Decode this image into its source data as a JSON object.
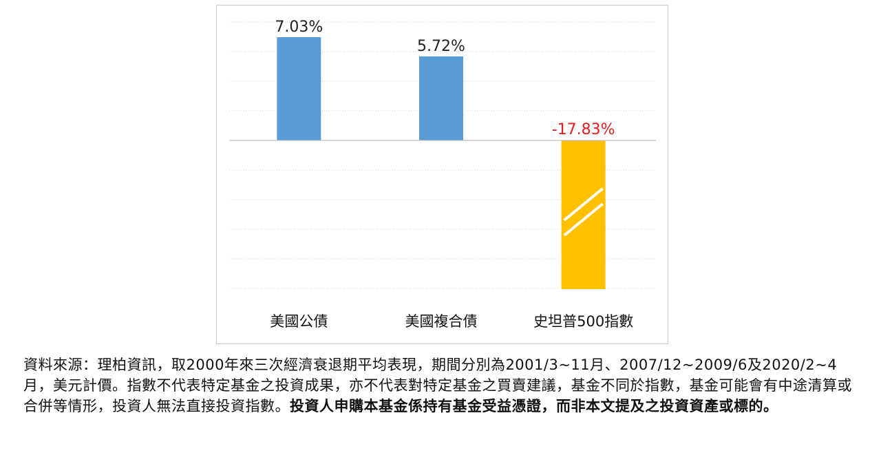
{
  "chart_data": {
    "type": "bar",
    "categories": [
      "美國公債",
      "美國複合債",
      "史坦普500指數"
    ],
    "values": [
      7.03,
      5.72,
      -17.83
    ],
    "value_labels": [
      "7.03%",
      "5.72%",
      "-17.83%"
    ],
    "colors": [
      "#5b9bd5",
      "#5b9bd5",
      "#ffc000"
    ],
    "label_colors": [
      "#222222",
      "#222222",
      "#e02020"
    ],
    "axis_break_on": "史坦普500指數",
    "grid": "dotted",
    "legend": "none"
  },
  "caption": {
    "normal": "資料來源：理柏資訊，取2000年來三次經濟衰退期平均表現，期間分別為2001/3~11月、2007/12~2009/6及2020/2~4月，美元計價。指數不代表特定基金之投資成果，亦不代表對特定基金之買賣建議，基金不同於指數，基金可能會有中途清算或合併等情形，投資人無法直接投資指數。",
    "bold": "投資人申購本基金係持有基金受益憑證，而非本文提及之投資資產或標的。"
  }
}
